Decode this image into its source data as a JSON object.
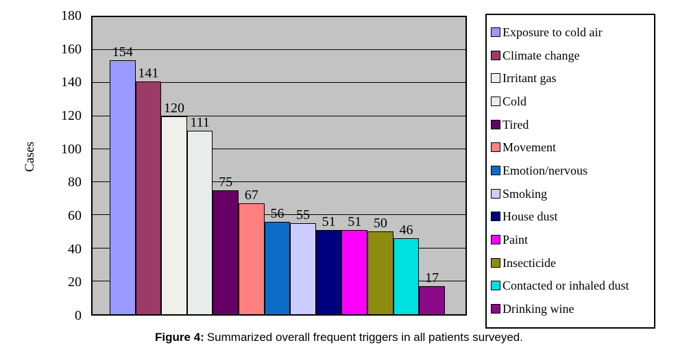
{
  "figure": {
    "caption_prefix": "Figure 4:",
    "caption_rest": "Summarized overall frequent triggers in all patients surveyed."
  },
  "chart_data": {
    "type": "bar",
    "title": "",
    "xlabel": "",
    "ylabel": "Cases",
    "ylim": [
      0,
      180
    ],
    "yticks": [
      0,
      20,
      40,
      60,
      80,
      100,
      120,
      140,
      160,
      180
    ],
    "grid": true,
    "gridline_color": "#000000",
    "plot_background": "#C3C3C3",
    "legend_position": "right",
    "value_labels_shown": true,
    "categories": [
      "Exposure to cold air",
      "Climate change",
      "Irritant gas",
      "Cold",
      "Tired",
      "Movement",
      "Emotion/nervous",
      "Smoking",
      "House dust",
      "Paint",
      "Insecticide",
      "Contacted or inhaled dust",
      "Drinking wine"
    ],
    "values": [
      154,
      141,
      120,
      111,
      75,
      67,
      56,
      55,
      51,
      51,
      50,
      46,
      17
    ],
    "colors": [
      "#9999FF",
      "#9C3A68",
      "#F0F0EA",
      "#E8EDEC",
      "#660066",
      "#FF8080",
      "#0D6CC9",
      "#CCCCFF",
      "#000080",
      "#FF00FF",
      "#8C8C10",
      "#00E0E0",
      "#8A0A8A"
    ]
  }
}
